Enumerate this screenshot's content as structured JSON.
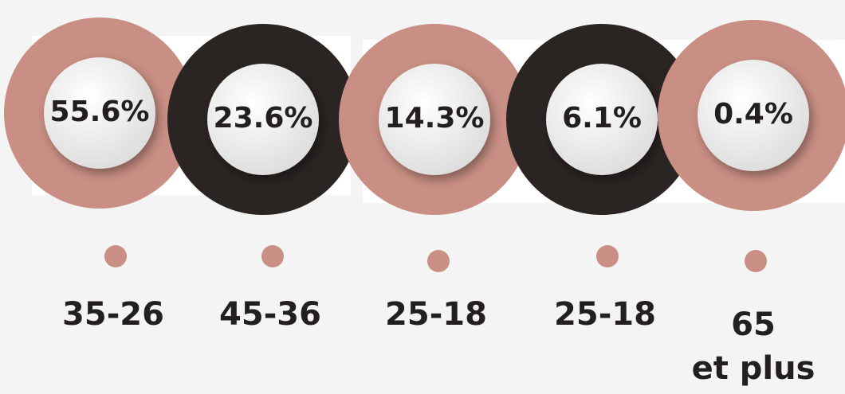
{
  "items": [
    {
      "value": "55.6%",
      "label_lines": [
        "35-26"
      ]
    },
    {
      "value": "23.6%",
      "label_lines": [
        "45-36"
      ]
    },
    {
      "value": "14.3%",
      "label_lines": [
        "25-18"
      ]
    },
    {
      "value": "6.1%",
      "label_lines": [
        "25-18"
      ]
    },
    {
      "value": "0.4%",
      "label_lines": [
        "65",
        "et plus"
      ]
    }
  ]
}
